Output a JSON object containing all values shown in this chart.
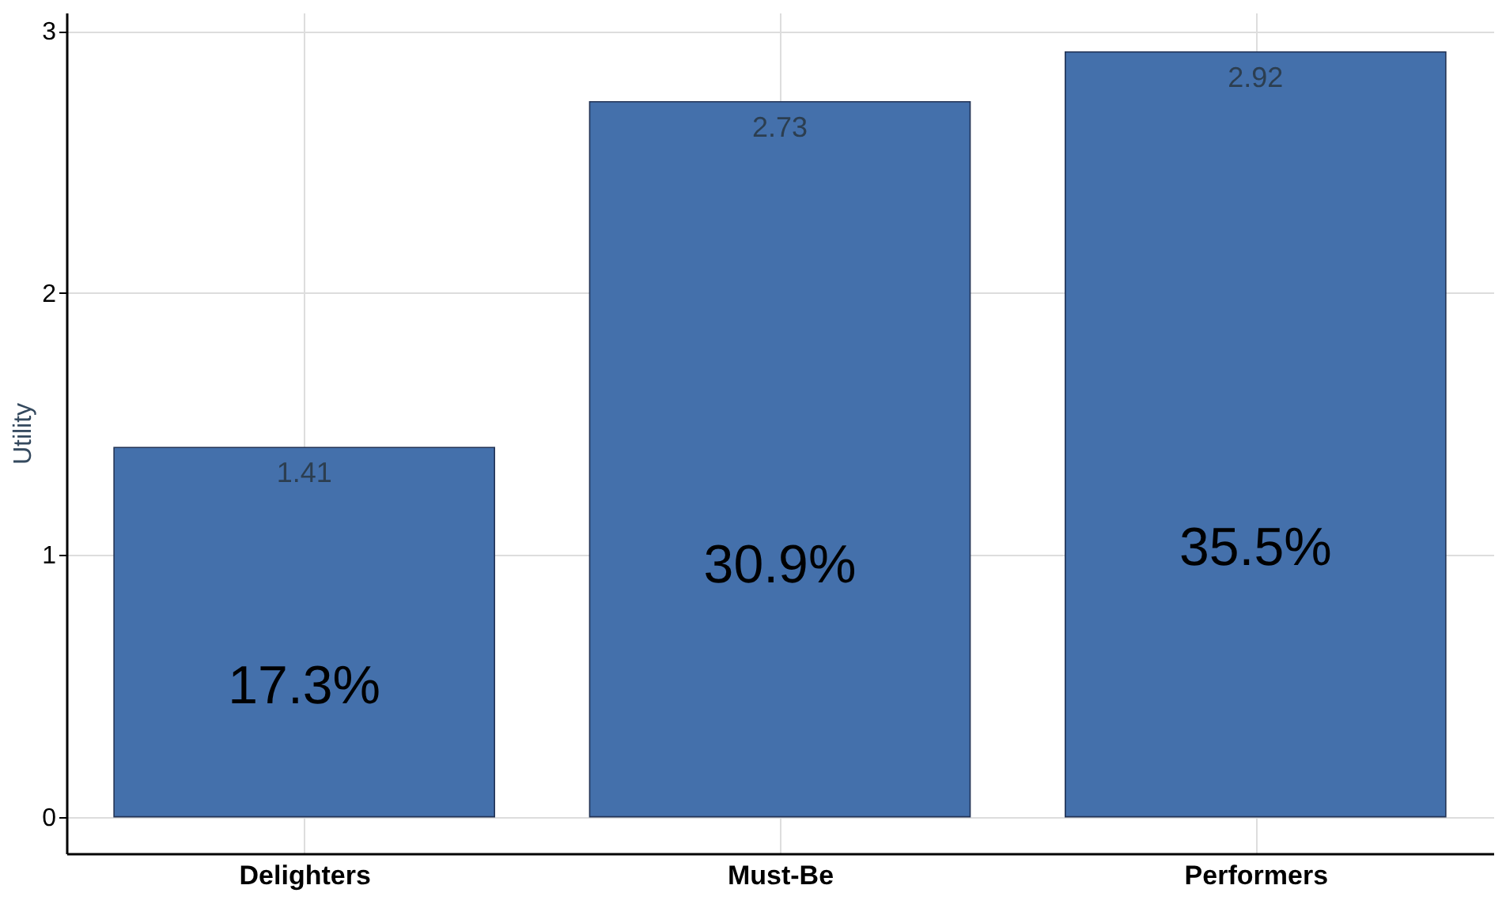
{
  "chart_data": {
    "type": "bar",
    "ylabel": "Utility",
    "categories": [
      "Delighters",
      "Must-Be",
      "Performers"
    ],
    "values": [
      1.41,
      2.73,
      2.92
    ],
    "color": "#4470ab",
    "ylim": [
      -0.14,
      3.07
    ],
    "yticks": [
      0,
      1,
      2,
      3
    ],
    "grid": true,
    "data_labels": true,
    "annotations": [
      "17.3%",
      "30.9%",
      "35.5%"
    ]
  }
}
